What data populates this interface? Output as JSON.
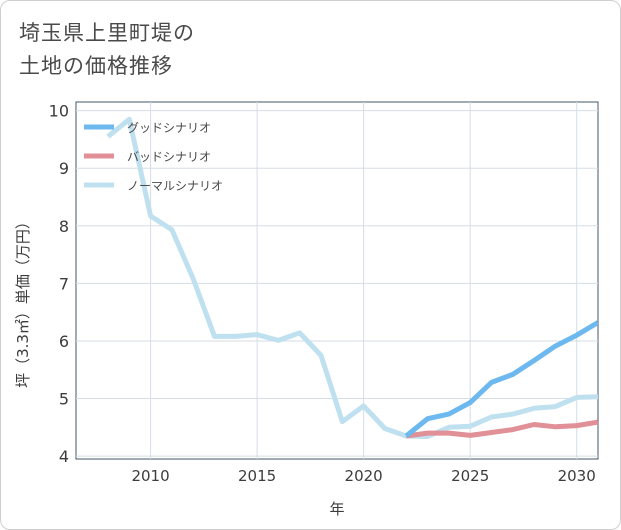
{
  "title": {
    "line1": "埼玉県上里町堤の",
    "line2": "土地の価格推移"
  },
  "chart_data": {
    "type": "line",
    "xlabel": "年",
    "ylabel": "坪（3.3㎡）単価（万円）",
    "xlim": [
      2006.5,
      2031
    ],
    "ylim": [
      3.95,
      10.15
    ],
    "xticks": [
      2010,
      2015,
      2020,
      2025,
      2030
    ],
    "yticks": [
      4,
      5,
      6,
      7,
      8,
      9,
      10
    ],
    "grid": true,
    "legend_position": "top-left",
    "series": [
      {
        "name": "グッドシナリオ",
        "color": "#6cb8ef",
        "x": [
          2022,
          2023,
          2024,
          2025,
          2026,
          2027,
          2028,
          2029,
          2030,
          2031
        ],
        "y": [
          4.35,
          4.65,
          4.73,
          4.93,
          5.28,
          5.42,
          5.66,
          5.91,
          6.1,
          6.32
        ]
      },
      {
        "name": "バッドシナリオ",
        "color": "#e09096",
        "x": [
          2022,
          2023,
          2024,
          2025,
          2026,
          2027,
          2028,
          2029,
          2030,
          2031
        ],
        "y": [
          4.35,
          4.4,
          4.4,
          4.36,
          4.41,
          4.46,
          4.55,
          4.51,
          4.53,
          4.59
        ]
      },
      {
        "name": "ノーマルシナリオ",
        "color": "#bfe0ef",
        "x": [
          2008,
          2009,
          2010,
          2011,
          2012,
          2013,
          2014,
          2015,
          2016,
          2017,
          2018,
          2019,
          2020,
          2021,
          2022,
          2023,
          2024,
          2025,
          2026,
          2027,
          2028,
          2029,
          2030,
          2031
        ],
        "y": [
          9.55,
          9.85,
          8.17,
          7.93,
          7.08,
          6.08,
          6.08,
          6.11,
          6.01,
          6.14,
          5.75,
          4.6,
          4.87,
          4.48,
          4.35,
          4.34,
          4.5,
          4.52,
          4.68,
          4.73,
          4.83,
          4.86,
          5.02,
          5.03
        ]
      }
    ]
  }
}
